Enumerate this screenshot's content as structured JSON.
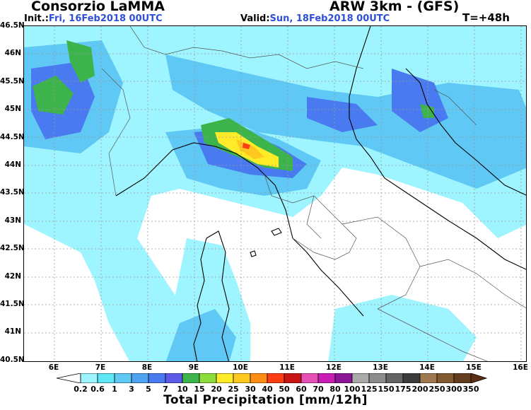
{
  "header": {
    "org": "Consorzio LaMMA",
    "model": "ARW 3km - (GFS)",
    "init_label": "Init.:",
    "init_value": "Fri, 16Feb2018 00UTC",
    "valid_label": "Valid:",
    "valid_value": "Sun, 18Feb2018 00UTC",
    "forecast_step": "T=+48h"
  },
  "map": {
    "lat_labels": [
      "46.5N",
      "46N",
      "45.5N",
      "45N",
      "44.5N",
      "44N",
      "43.5N",
      "43N",
      "42.5N",
      "42N",
      "41.5N",
      "41N",
      "40.5N"
    ],
    "lon_labels": [
      "6E",
      "7E",
      "8E",
      "9E",
      "10E",
      "11E",
      "12E",
      "13E",
      "14E",
      "15E",
      "16E"
    ],
    "gridline_color": "#999999",
    "coast_color": "#000000",
    "border_color": "#777777"
  },
  "colorbar": {
    "title": "Total Precipitation [mm/12h]",
    "levels": [
      "0.2",
      "0.6",
      "1",
      "3",
      "5",
      "7",
      "10",
      "15",
      "20",
      "25",
      "30",
      "40",
      "50",
      "60",
      "70",
      "80",
      "100",
      "125",
      "150",
      "175",
      "200",
      "250",
      "300",
      "350"
    ],
    "colors": [
      "#ffffff",
      "#9ef5ff",
      "#5fe6f5",
      "#5fc8f5",
      "#4fa3f0",
      "#4a7af0",
      "#5b5be8",
      "#3cb44b",
      "#8cdc3c",
      "#ffeb28",
      "#ffc81e",
      "#ff8c14",
      "#ff3c14",
      "#c81414",
      "#e650b4",
      "#c81eb4",
      "#8c1496",
      "#aaaaaa",
      "#8c8c8c",
      "#646464",
      "#3c3c3c",
      "#a07850",
      "#825a32",
      "#643c1e",
      "#5a2d14"
    ]
  }
}
